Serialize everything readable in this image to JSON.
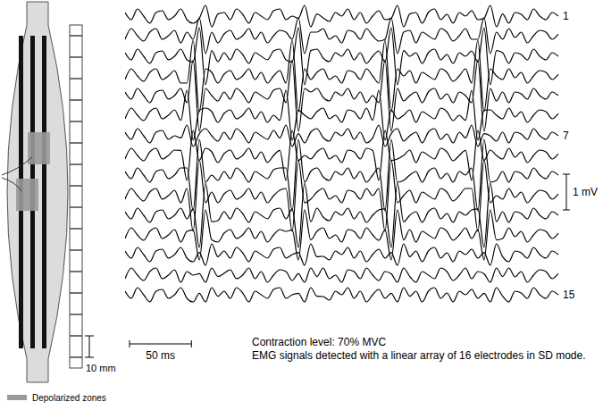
{
  "chart_data": {
    "type": "line",
    "color": "#000000",
    "tick_labels": false,
    "xlim": [
      0,
      350
    ],
    "ylim": [
      -1.5,
      1.5
    ],
    "x": [
      0,
      5,
      10,
      15,
      20,
      25,
      30,
      35,
      40,
      45,
      50,
      55,
      60,
      65,
      70,
      75,
      80,
      85,
      90,
      95,
      100,
      105,
      110,
      115,
      120,
      125,
      130,
      135,
      140,
      145,
      150,
      155,
      160,
      165,
      170,
      175,
      180,
      185,
      190,
      195,
      200,
      205,
      210,
      215,
      220,
      225,
      230,
      235,
      240,
      245,
      250,
      255,
      260,
      265,
      270,
      275,
      280,
      285,
      290,
      295,
      300,
      305,
      310,
      315,
      320,
      325,
      330,
      335,
      340,
      345,
      350
    ],
    "series": [
      {
        "name": "1",
        "values": [
          0.1,
          -0.1,
          0.2,
          0,
          -0.2,
          0.1,
          0.15,
          -0.1,
          0,
          0.2,
          -0.1,
          -0.2,
          -0.06,
          0.3,
          -0.3,
          0.06,
          0.1,
          -0.1,
          0.2,
          0.05,
          -0.2,
          0.1,
          0,
          -0.1,
          0.15,
          0.2,
          -0.1,
          0,
          -0.06,
          0.3,
          -0.3,
          0.06,
          -0.05,
          -0.15,
          0.1,
          0,
          0.2,
          -0.1,
          0.1,
          -0.2,
          0,
          0.15,
          -0.1,
          -0.06,
          0.3,
          -0.3,
          0.06,
          0.1,
          -0.2,
          0.1,
          0.2,
          -0.1,
          0.05,
          -0.2,
          0.1,
          0,
          0.15,
          -0.1,
          -0.06,
          0.3,
          -0.3,
          0.06,
          -0.2,
          0.1,
          0.05,
          -0.1,
          0.2,
          0,
          -0.1,
          0.1,
          0
        ]
      },
      {
        "values": [
          -0.1,
          0.2,
          0,
          -0.15,
          0.1,
          0.2,
          -0.1,
          0,
          0.15,
          -0.2,
          0.1,
          -0.1,
          0.5,
          -0.5,
          0.1,
          -0.2,
          0.05,
          0.15,
          -0.1,
          0,
          0.2,
          -0.1,
          0.1,
          -0.2,
          0,
          0.15,
          0.1,
          -0.1,
          0.5,
          -0.5,
          0.1,
          0.1,
          0.2,
          -0.1,
          0,
          -0.2,
          0.15,
          0.1,
          -0.1,
          0.2,
          0,
          -0.15,
          -0.1,
          0.5,
          -0.5,
          0.1,
          0.15,
          -0.2,
          0.1,
          0,
          -0.1,
          0.2,
          0.1,
          -0.15,
          0,
          0.2,
          -0.1,
          -0.1,
          0.5,
          -0.5,
          0.1,
          -0.1,
          0.2,
          -0.05,
          0.1,
          -0.2,
          0,
          0.15,
          0.1,
          -0.1,
          0.05
        ]
      },
      {
        "values": [
          0.1,
          -0.1,
          0.2,
          0,
          -0.2,
          0.1,
          0.15,
          -0.1,
          0,
          0.2,
          -0.1,
          -0.16,
          0.8,
          -0.8,
          0.16,
          -0.15,
          0.1,
          -0.1,
          0.2,
          0.05,
          -0.2,
          0.1,
          0,
          -0.1,
          0.15,
          0.2,
          -0.1,
          -0.16,
          0.8,
          -0.8,
          0.16,
          0.2,
          -0.05,
          -0.15,
          0.1,
          0,
          0.2,
          -0.1,
          0.1,
          -0.2,
          0,
          0.15,
          -0.16,
          0.8,
          -0.8,
          0.16,
          0,
          0.1,
          -0.2,
          0.1,
          0.2,
          -0.1,
          0.05,
          -0.2,
          0.1,
          0,
          0.15,
          -0.16,
          0.8,
          -0.8,
          0.16,
          0.1,
          -0.2,
          0.1,
          0.05,
          -0.1,
          0.2,
          0,
          -0.1,
          0.1,
          0
        ]
      },
      {
        "values": [
          -0.1,
          0.2,
          0,
          -0.15,
          0.1,
          0.2,
          -0.1,
          0,
          0.15,
          -0.2,
          -0.2,
          1,
          -1,
          0.2,
          0.1,
          -0.2,
          0.05,
          0.15,
          -0.1,
          0,
          0.2,
          -0.1,
          0.1,
          -0.2,
          0,
          0.15,
          -0.2,
          1,
          -1,
          0.2,
          -0.1,
          0.1,
          0.2,
          -0.1,
          0,
          -0.2,
          0.15,
          0.1,
          -0.1,
          0.2,
          0,
          -0.2,
          1,
          -1,
          0.2,
          0,
          0.15,
          -0.2,
          0.1,
          0,
          -0.1,
          0.2,
          0.1,
          -0.15,
          0,
          0.2,
          -0.2,
          1,
          -1,
          0.2,
          0,
          -0.1,
          0.2,
          -0.05,
          0.1,
          -0.2,
          0,
          0.15,
          0.1,
          -0.1,
          0.05
        ]
      },
      {
        "values": [
          0.1,
          -0.1,
          0.2,
          0,
          -0.2,
          0.1,
          0.15,
          -0.1,
          0,
          0.2,
          -0.2,
          1,
          -1,
          0.2,
          0,
          -0.15,
          0.1,
          -0.1,
          0.2,
          0.05,
          -0.2,
          0.1,
          0,
          -0.1,
          0.15,
          0.2,
          -0.2,
          1,
          -1,
          0.2,
          0.1,
          0.2,
          -0.05,
          -0.15,
          0.1,
          0,
          0.2,
          -0.1,
          0.1,
          -0.2,
          0,
          -0.2,
          1,
          -1,
          0.2,
          -0.15,
          0,
          0.1,
          -0.2,
          0.1,
          0.2,
          -0.1,
          0.05,
          -0.2,
          0.1,
          0,
          -0.2,
          1,
          -1,
          0.2,
          -0.15,
          0.1,
          -0.2,
          0.1,
          0.05,
          -0.1,
          0.2,
          0,
          -0.1,
          0.1,
          0
        ]
      },
      {
        "values": [
          -0.1,
          0.2,
          0,
          -0.15,
          0.1,
          0.2,
          -0.1,
          0,
          0.15,
          -0.14,
          0.7,
          -0.7,
          0.14,
          0.2,
          0.1,
          -0.2,
          0.05,
          0.15,
          -0.1,
          0,
          0.2,
          -0.1,
          0.1,
          -0.2,
          0,
          -0.14,
          0.7,
          -0.7,
          0.14,
          0,
          -0.1,
          0.1,
          0.2,
          -0.1,
          0,
          -0.2,
          0.15,
          0.1,
          -0.1,
          0.2,
          -0.14,
          0.7,
          -0.7,
          0.14,
          -0.1,
          0,
          0.15,
          -0.2,
          0.1,
          0,
          -0.1,
          0.2,
          0.1,
          -0.15,
          0,
          -0.14,
          0.7,
          -0.7,
          0.14,
          0.15,
          0,
          -0.1,
          0.2,
          -0.05,
          0.1,
          -0.2,
          0,
          0.15,
          0.1,
          -0.1,
          0.05
        ]
      },
      {
        "name": "7",
        "values": [
          0.1,
          -0.1,
          0.2,
          0,
          -0.2,
          0.1,
          0.15,
          -0.1,
          0,
          -0.06,
          0.3,
          -0.3,
          0.06,
          0.2,
          0,
          -0.15,
          0.1,
          -0.1,
          0.2,
          0.05,
          -0.2,
          0.1,
          0,
          -0.1,
          0.15,
          -0.06,
          0.3,
          -0.3,
          0.06,
          -0.2,
          0.1,
          0.2,
          -0.05,
          -0.15,
          0.1,
          0,
          0.2,
          -0.1,
          0.1,
          -0.2,
          -0.06,
          0.3,
          -0.3,
          0.06,
          0.2,
          -0.15,
          0,
          0.1,
          -0.2,
          0.1,
          0.2,
          -0.1,
          0.05,
          -0.2,
          0.1,
          -0.06,
          0.3,
          -0.3,
          0.06,
          0,
          -0.15,
          0.1,
          -0.2,
          0.1,
          0.05,
          -0.1,
          0.2,
          0,
          -0.1,
          0.1,
          0
        ]
      },
      {
        "values": [
          -0.1,
          0.2,
          0,
          -0.15,
          0.1,
          0.2,
          -0.1,
          0,
          0.15,
          0.14,
          -0.7,
          0.7,
          -0.14,
          0.2,
          0.1,
          -0.2,
          0.05,
          0.15,
          -0.1,
          0,
          0.2,
          -0.1,
          0.1,
          -0.2,
          0,
          0.14,
          -0.7,
          0.7,
          -0.14,
          0,
          -0.1,
          0.1,
          0.2,
          -0.1,
          0,
          -0.2,
          0.15,
          0.1,
          -0.1,
          0.2,
          0.14,
          -0.7,
          0.7,
          -0.14,
          -0.1,
          0,
          0.15,
          -0.2,
          0.1,
          0,
          -0.1,
          0.2,
          0.1,
          -0.15,
          0,
          0.14,
          -0.7,
          0.7,
          -0.14,
          0.15,
          0,
          -0.1,
          0.2,
          -0.05,
          0.1,
          -0.2,
          0,
          0.15,
          0.1,
          -0.1,
          0.05
        ]
      },
      {
        "values": [
          0.1,
          -0.1,
          0.2,
          0,
          -0.2,
          0.1,
          0.15,
          -0.1,
          0,
          0.2,
          0.2,
          -1,
          1,
          -0.2,
          0,
          -0.15,
          0.1,
          -0.1,
          0.2,
          0.05,
          -0.2,
          0.1,
          0,
          -0.1,
          0.15,
          0.2,
          0.2,
          -1,
          1,
          -0.2,
          0.1,
          0.2,
          -0.05,
          -0.15,
          0.1,
          0,
          0.2,
          -0.1,
          0.1,
          -0.2,
          0,
          0.2,
          -1,
          1,
          -0.2,
          -0.15,
          0,
          0.1,
          -0.2,
          0.1,
          0.2,
          -0.1,
          0.05,
          -0.2,
          0.1,
          0,
          0.2,
          -1,
          1,
          -0.2,
          -0.15,
          0.1,
          -0.2,
          0.1,
          0.05,
          -0.1,
          0.2,
          0,
          -0.1,
          0.1,
          0
        ]
      },
      {
        "values": [
          -0.1,
          0.2,
          0,
          -0.15,
          0.1,
          0.2,
          -0.1,
          0,
          0.15,
          -0.2,
          0.2,
          -1,
          1,
          -0.2,
          0.1,
          -0.2,
          0.05,
          0.15,
          -0.1,
          0,
          0.2,
          -0.1,
          0.1,
          -0.2,
          0,
          0.15,
          0.2,
          -1,
          1,
          -0.2,
          -0.1,
          0.1,
          0.2,
          -0.1,
          0,
          -0.2,
          0.15,
          0.1,
          -0.1,
          0.2,
          0,
          0.2,
          -1,
          1,
          -0.2,
          0,
          0.15,
          -0.2,
          0.1,
          0,
          -0.1,
          0.2,
          0.1,
          -0.15,
          0,
          0.2,
          0.2,
          -1,
          1,
          -0.2,
          0,
          -0.1,
          0.2,
          -0.05,
          0.1,
          -0.2,
          0,
          0.15,
          0.1,
          -0.1,
          0.05
        ]
      },
      {
        "values": [
          0.1,
          -0.1,
          0.2,
          0,
          -0.2,
          0.1,
          0.15,
          -0.1,
          0,
          0.2,
          -0.1,
          0.18,
          -0.9,
          0.9,
          -0.18,
          -0.15,
          0.1,
          -0.1,
          0.2,
          0.05,
          -0.2,
          0.1,
          0,
          -0.1,
          0.15,
          0.2,
          -0.1,
          0.18,
          -0.9,
          0.9,
          -0.18,
          0.2,
          -0.05,
          -0.15,
          0.1,
          0,
          0.2,
          -0.1,
          0.1,
          -0.2,
          0,
          0.15,
          0.18,
          -0.9,
          0.9,
          -0.18,
          0,
          0.1,
          -0.2,
          0.1,
          0.2,
          -0.1,
          0.05,
          -0.2,
          0.1,
          0,
          0.15,
          0.18,
          -0.9,
          0.9,
          -0.18,
          0.1,
          -0.2,
          0.1,
          0.05,
          -0.1,
          0.2,
          0,
          -0.1,
          0.1,
          0
        ]
      },
      {
        "values": [
          -0.1,
          0.2,
          0,
          -0.15,
          0.1,
          0.2,
          -0.1,
          0,
          0.15,
          -0.2,
          0.1,
          0.14,
          -0.7,
          0.7,
          -0.14,
          -0.2,
          0.05,
          0.15,
          -0.1,
          0,
          0.2,
          -0.1,
          0.1,
          -0.2,
          0,
          0.15,
          0.1,
          0.14,
          -0.7,
          0.7,
          -0.14,
          0.1,
          0.2,
          -0.1,
          0,
          -0.2,
          0.15,
          0.1,
          -0.1,
          0.2,
          0,
          -0.15,
          0.14,
          -0.7,
          0.7,
          -0.14,
          0.15,
          -0.2,
          0.1,
          0,
          -0.1,
          0.2,
          0.1,
          -0.15,
          0,
          0.2,
          -0.1,
          0.14,
          -0.7,
          0.7,
          -0.14,
          -0.1,
          0.2,
          -0.05,
          0.1,
          -0.2,
          0,
          0.15,
          0.1,
          -0.1,
          0.05
        ]
      },
      {
        "values": [
          0.1,
          -0.1,
          0.2,
          0,
          -0.2,
          0.1,
          0.15,
          -0.1,
          0,
          0.2,
          -0.1,
          -0.2,
          0.06,
          -0.3,
          0.3,
          -0.06,
          0.1,
          -0.1,
          0.2,
          0.05,
          -0.2,
          0.1,
          0,
          -0.1,
          0.15,
          0.2,
          -0.1,
          0,
          0.06,
          -0.3,
          0.3,
          -0.06,
          -0.05,
          -0.15,
          0.1,
          0,
          0.2,
          -0.1,
          0.1,
          -0.2,
          0,
          0.15,
          -0.1,
          0.06,
          -0.3,
          0.3,
          -0.06,
          0.1,
          -0.2,
          0.1,
          0.2,
          -0.1,
          0.05,
          -0.2,
          0.1,
          0,
          0.15,
          -0.1,
          0.06,
          -0.3,
          0.3,
          -0.06,
          -0.2,
          0.1,
          0.05,
          -0.1,
          0.2,
          0,
          -0.1,
          0.1,
          0
        ]
      },
      {
        "values": [
          -0.1,
          0.2,
          0,
          -0.15,
          0.1,
          0.2,
          -0.1,
          0,
          0.15,
          -0.2,
          0.1,
          0,
          0.04,
          -0.2,
          0.2,
          -0.04,
          0.05,
          0.15,
          -0.1,
          0,
          0.2,
          -0.1,
          0.1,
          -0.2,
          0,
          0.15,
          0.1,
          -0.15,
          0.04,
          -0.2,
          0.2,
          -0.04,
          0.2,
          -0.1,
          0,
          -0.2,
          0.15,
          0.1,
          -0.1,
          0.2,
          0,
          -0.15,
          0.1,
          0.04,
          -0.2,
          0.2,
          -0.04,
          -0.2,
          0.1,
          0,
          -0.1,
          0.2,
          0.1,
          -0.15,
          0,
          0.2,
          -0.1,
          0.1,
          0.04,
          -0.2,
          0.2,
          -0.04,
          0.2,
          -0.05,
          0.1,
          -0.2,
          0,
          0.15,
          0.1,
          -0.1,
          0.05
        ]
      },
      {
        "name": "15",
        "values": [
          0.1,
          -0.1,
          0.2,
          0,
          -0.2,
          0.1,
          0.15,
          -0.1,
          0,
          0.2,
          -0.1,
          -0.2,
          0.04,
          -0.2,
          0.2,
          -0.04,
          0.1,
          -0.1,
          0.2,
          0.05,
          -0.2,
          0.1,
          0,
          -0.1,
          0.15,
          0.2,
          -0.1,
          0,
          0.04,
          -0.2,
          0.2,
          -0.04,
          -0.05,
          -0.15,
          0.1,
          0,
          0.2,
          -0.1,
          0.1,
          -0.2,
          0,
          0.15,
          -0.1,
          0.04,
          -0.2,
          0.2,
          -0.04,
          0.1,
          -0.2,
          0.1,
          0.2,
          -0.1,
          0.05,
          -0.2,
          0.1,
          0,
          0.15,
          -0.1,
          0.04,
          -0.2,
          0.2,
          -0.04,
          -0.2,
          0.1,
          0.05,
          -0.1,
          0.2,
          0,
          -0.1,
          0.1,
          0
        ]
      }
    ],
    "scale_bars": [
      {
        "axis": "y",
        "value": 1,
        "label": "1 mV"
      },
      {
        "axis": "x",
        "value": 50,
        "label": "50 ms"
      }
    ],
    "annotations": [
      "Contraction level: 70% MVC",
      "EMG signals detected with a linear array of 16 electrodes in SD mode."
    ]
  },
  "diagram": {
    "spacing_label": "10 mm",
    "zone_label": "Depolarized zones"
  }
}
